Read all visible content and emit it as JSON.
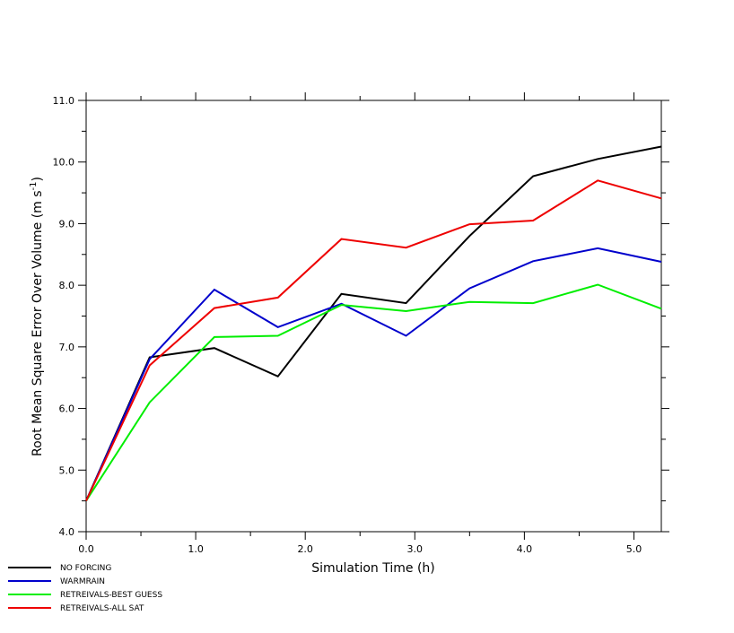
{
  "chart_data": {
    "type": "line",
    "title": "",
    "xlabel": "Simulation Time (h)",
    "ylabel_main": "Root Mean Square Error Over Volume (m s",
    "ylabel_sup": "-1",
    "ylabel_close": ")",
    "xlim": [
      0,
      5.25
    ],
    "ylim": [
      4.0,
      11.0
    ],
    "x_ticks": [
      0,
      1,
      2,
      3,
      4,
      5
    ],
    "x_tick_labels": [
      "0.0",
      "1.0",
      "2.0",
      "3.0",
      "4.0",
      "5.0"
    ],
    "y_ticks": [
      4,
      5,
      6,
      7,
      8,
      9,
      10,
      11
    ],
    "y_tick_labels": [
      "4.0",
      "5.0",
      "6.0",
      "7.0",
      "8.0",
      "9.0",
      "10.0",
      "11.0"
    ],
    "x": [
      0.0,
      0.58,
      1.17,
      1.75,
      2.33,
      2.92,
      3.5,
      4.08,
      4.67,
      5.25
    ],
    "grid": false,
    "legend_position": "bottom-left",
    "series": [
      {
        "name": "NO FORCING",
        "color": "#000000",
        "values": [
          4.5,
          6.83,
          6.98,
          6.52,
          7.86,
          7.71,
          8.8,
          9.77,
          10.05,
          10.25
        ]
      },
      {
        "name": "WARMRAIN",
        "color": "#0000cc",
        "values": [
          4.5,
          6.8,
          7.93,
          7.32,
          7.7,
          7.18,
          7.95,
          8.39,
          8.6,
          8.38
        ]
      },
      {
        "name": "RETREIVALS-BEST GUESS",
        "color": "#00ee00",
        "values": [
          4.5,
          6.1,
          7.16,
          7.18,
          7.68,
          7.58,
          7.73,
          7.71,
          8.01,
          7.62
        ]
      },
      {
        "name": "RETREIVALS-ALL SAT",
        "color": "#ee0000",
        "values": [
          4.5,
          6.7,
          7.63,
          7.8,
          8.75,
          8.61,
          8.99,
          9.05,
          9.7,
          9.41
        ]
      }
    ]
  }
}
